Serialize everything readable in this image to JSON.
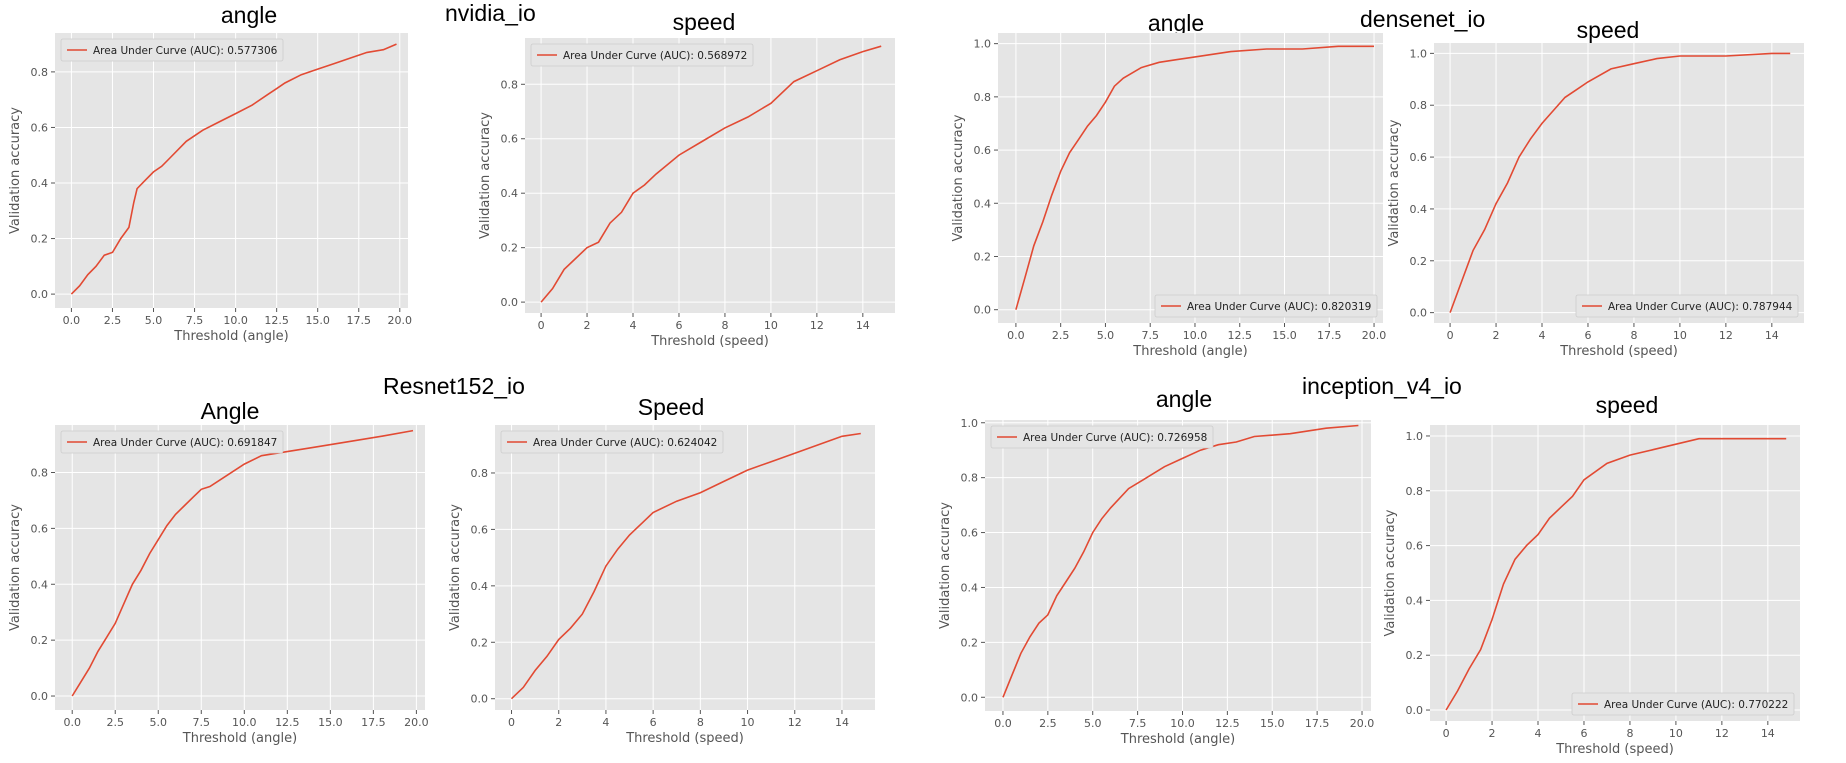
{
  "group_titles": [
    "nvidia_io",
    "densenet_io",
    "Resnet152_io",
    "inception_v4_io"
  ],
  "chart_titles": [
    "angle",
    "speed",
    "angle",
    "speed",
    "Angle",
    "Speed",
    "angle",
    "speed"
  ],
  "styles": {
    "plot_bg": "#e5e5e5",
    "grid": "#ffffff",
    "line": "#e24a33",
    "tick_text": "#555555",
    "label_text": "#555555"
  },
  "chart_data": [
    {
      "group": "nvidia_io",
      "title": "angle",
      "type": "line",
      "xlabel": "Threshold (angle)",
      "ylabel": "Validation accuracy",
      "xlim": [
        -1,
        20.5
      ],
      "ylim": [
        -0.05,
        0.94
      ],
      "xticks": [
        0.0,
        2.5,
        5.0,
        7.5,
        10.0,
        12.5,
        15.0,
        17.5,
        20.0
      ],
      "xtick_labels": [
        "0.0",
        "2.5",
        "5.0",
        "7.5",
        "10.0",
        "12.5",
        "15.0",
        "17.5",
        "20.0"
      ],
      "yticks": [
        0.0,
        0.2,
        0.4,
        0.6,
        0.8
      ],
      "ytick_labels": [
        "0.0",
        "0.2",
        "0.4",
        "0.6",
        "0.8"
      ],
      "legend": "top-left",
      "series": [
        {
          "name": "Area Under Curve (AUC): 0.577306",
          "x": [
            0,
            0.5,
            1,
            1.5,
            2,
            2.5,
            3,
            3.5,
            3.8,
            4,
            4.5,
            5,
            5.5,
            6,
            7,
            8,
            9,
            10,
            11,
            12,
            12.5,
            13,
            14,
            15,
            16,
            17,
            18,
            19,
            19.8
          ],
          "y": [
            0,
            0.03,
            0.07,
            0.1,
            0.14,
            0.15,
            0.2,
            0.24,
            0.33,
            0.38,
            0.41,
            0.44,
            0.46,
            0.49,
            0.55,
            0.59,
            0.62,
            0.65,
            0.68,
            0.72,
            0.74,
            0.76,
            0.79,
            0.81,
            0.83,
            0.85,
            0.87,
            0.88,
            0.9
          ]
        }
      ]
    },
    {
      "group": "nvidia_io",
      "title": "speed",
      "type": "line",
      "xlabel": "Threshold (speed)",
      "ylabel": "Validation accuracy",
      "xlim": [
        -0.7,
        15.4
      ],
      "ylim": [
        -0.04,
        0.97
      ],
      "xticks": [
        0,
        2,
        4,
        6,
        8,
        10,
        12,
        14
      ],
      "xtick_labels": [
        "0",
        "2",
        "4",
        "6",
        "8",
        "10",
        "12",
        "14"
      ],
      "yticks": [
        0.0,
        0.2,
        0.4,
        0.6,
        0.8
      ],
      "ytick_labels": [
        "0.0",
        "0.2",
        "0.4",
        "0.6",
        "0.8"
      ],
      "legend": "top-left",
      "series": [
        {
          "name": "Area Under Curve (AUC): 0.568972",
          "x": [
            0,
            0.5,
            1,
            1.5,
            2,
            2.5,
            3,
            3.5,
            4,
            4.5,
            5,
            6,
            7,
            8,
            9,
            10,
            11,
            12,
            13,
            14,
            14.8
          ],
          "y": [
            0,
            0.05,
            0.12,
            0.16,
            0.2,
            0.22,
            0.29,
            0.33,
            0.4,
            0.43,
            0.47,
            0.54,
            0.59,
            0.64,
            0.68,
            0.73,
            0.81,
            0.85,
            0.89,
            0.92,
            0.94
          ]
        }
      ]
    },
    {
      "group": "densenet_io",
      "title": "angle",
      "type": "line",
      "xlabel": "Threshold (angle)",
      "ylabel": "Validation accuracy",
      "xlim": [
        -1,
        20.5
      ],
      "ylim": [
        -0.05,
        1.04
      ],
      "xticks": [
        0.0,
        2.5,
        5.0,
        7.5,
        10.0,
        12.5,
        15.0,
        17.5,
        20.0
      ],
      "xtick_labels": [
        "0.0",
        "2.5",
        "5.0",
        "7.5",
        "10.0",
        "12.5",
        "15.0",
        "17.5",
        "20.0"
      ],
      "yticks": [
        0.0,
        0.2,
        0.4,
        0.6,
        0.8,
        1.0
      ],
      "ytick_labels": [
        "0.0",
        "0.2",
        "0.4",
        "0.6",
        "0.8",
        "1.0"
      ],
      "legend": "bottom-right",
      "series": [
        {
          "name": "Area Under Curve (AUC): 0.820319",
          "x": [
            0,
            0.5,
            1,
            1.5,
            2,
            2.5,
            3,
            3.5,
            4,
            4.5,
            5,
            5.5,
            6,
            7,
            8,
            9,
            10,
            12,
            14,
            16,
            18,
            20
          ],
          "y": [
            0,
            0.12,
            0.24,
            0.33,
            0.43,
            0.52,
            0.59,
            0.64,
            0.69,
            0.73,
            0.78,
            0.84,
            0.87,
            0.91,
            0.93,
            0.94,
            0.95,
            0.97,
            0.98,
            0.98,
            0.99,
            0.99
          ]
        }
      ]
    },
    {
      "group": "densenet_io",
      "title": "speed",
      "type": "line",
      "xlabel": "Threshold (speed)",
      "ylabel": "Validation accuracy",
      "xlim": [
        -0.7,
        15.4
      ],
      "ylim": [
        -0.04,
        1.04
      ],
      "xticks": [
        0,
        2,
        4,
        6,
        8,
        10,
        12,
        14
      ],
      "xtick_labels": [
        "0",
        "2",
        "4",
        "6",
        "8",
        "10",
        "12",
        "14"
      ],
      "yticks": [
        0.0,
        0.2,
        0.4,
        0.6,
        0.8,
        1.0
      ],
      "ytick_labels": [
        "0.0",
        "0.2",
        "0.4",
        "0.6",
        "0.8",
        "1.0"
      ],
      "legend": "bottom-right",
      "series": [
        {
          "name": "Area Under Curve (AUC): 0.787944",
          "x": [
            0,
            0.5,
            1,
            1.5,
            2,
            2.5,
            3,
            3.5,
            4,
            4.5,
            5,
            5.5,
            6,
            7,
            8,
            9,
            10,
            12,
            14,
            14.8
          ],
          "y": [
            0,
            0.12,
            0.24,
            0.32,
            0.42,
            0.5,
            0.6,
            0.67,
            0.73,
            0.78,
            0.83,
            0.86,
            0.89,
            0.94,
            0.96,
            0.98,
            0.99,
            0.99,
            1.0,
            1.0
          ]
        }
      ]
    },
    {
      "group": "Resnet152_io",
      "title": "Angle",
      "type": "line",
      "xlabel": "Threshold (angle)",
      "ylabel": "Validation accuracy",
      "xlim": [
        -1,
        20.5
      ],
      "ylim": [
        -0.05,
        0.97
      ],
      "xticks": [
        0.0,
        2.5,
        5.0,
        7.5,
        10.0,
        12.5,
        15.0,
        17.5,
        20.0
      ],
      "xtick_labels": [
        "0.0",
        "2.5",
        "5.0",
        "7.5",
        "10.0",
        "12.5",
        "15.0",
        "17.5",
        "20.0"
      ],
      "yticks": [
        0.0,
        0.2,
        0.4,
        0.6,
        0.8
      ],
      "ytick_labels": [
        "0.0",
        "0.2",
        "0.4",
        "0.6",
        "0.8"
      ],
      "legend": "top-left",
      "series": [
        {
          "name": "Area Under Curve (AUC): 0.691847",
          "x": [
            0,
            0.5,
            1,
            1.5,
            2,
            2.5,
            3,
            3.5,
            4,
            4.5,
            5,
            5.5,
            6,
            6.5,
            7,
            7.5,
            8,
            9,
            10,
            11,
            12,
            14,
            16,
            18,
            19.8
          ],
          "y": [
            0,
            0.05,
            0.1,
            0.16,
            0.21,
            0.26,
            0.33,
            0.4,
            0.45,
            0.51,
            0.56,
            0.61,
            0.65,
            0.68,
            0.71,
            0.74,
            0.75,
            0.79,
            0.83,
            0.86,
            0.87,
            0.89,
            0.91,
            0.93,
            0.95
          ]
        }
      ]
    },
    {
      "group": "Resnet152_io",
      "title": "Speed",
      "type": "line",
      "xlabel": "Threshold (speed)",
      "ylabel": "Validation accuracy",
      "xlim": [
        -0.7,
        15.4
      ],
      "ylim": [
        -0.04,
        0.97
      ],
      "xticks": [
        0,
        2,
        4,
        6,
        8,
        10,
        12,
        14
      ],
      "xtick_labels": [
        "0",
        "2",
        "4",
        "6",
        "8",
        "10",
        "12",
        "14"
      ],
      "yticks": [
        0.0,
        0.2,
        0.4,
        0.6,
        0.8
      ],
      "ytick_labels": [
        "0.0",
        "0.2",
        "0.4",
        "0.6",
        "0.8"
      ],
      "legend": "top-left",
      "series": [
        {
          "name": "Area Under Curve (AUC): 0.624042",
          "x": [
            0,
            0.5,
            1,
            1.5,
            2,
            2.5,
            3,
            3.5,
            4,
            4.5,
            5,
            5.5,
            6,
            7,
            8,
            9,
            10,
            11,
            12,
            13,
            14,
            14.8
          ],
          "y": [
            0,
            0.04,
            0.1,
            0.15,
            0.21,
            0.25,
            0.3,
            0.38,
            0.47,
            0.53,
            0.58,
            0.62,
            0.66,
            0.7,
            0.73,
            0.77,
            0.81,
            0.84,
            0.87,
            0.9,
            0.93,
            0.94
          ]
        }
      ]
    },
    {
      "group": "inception_v4_io",
      "title": "angle",
      "type": "line",
      "xlabel": "Threshold (angle)",
      "ylabel": "Validation accuracy",
      "xlim": [
        -1,
        20.5
      ],
      "ylim": [
        -0.05,
        1.01
      ],
      "xticks": [
        0.0,
        2.5,
        5.0,
        7.5,
        10.0,
        12.5,
        15.0,
        17.5,
        20.0
      ],
      "xtick_labels": [
        "0.0",
        "2.5",
        "5.0",
        "7.5",
        "10.0",
        "12.5",
        "15.0",
        "17.5",
        "20.0"
      ],
      "yticks": [
        0.0,
        0.2,
        0.4,
        0.6,
        0.8,
        1.0
      ],
      "ytick_labels": [
        "0.0",
        "0.2",
        "0.4",
        "0.6",
        "0.8",
        "1.0"
      ],
      "legend": "top-left",
      "series": [
        {
          "name": "Area Under Curve (AUC): 0.726958",
          "x": [
            0,
            0.5,
            1,
            1.5,
            2,
            2.5,
            3,
            3.5,
            4,
            4.5,
            5,
            5.5,
            6,
            7,
            8,
            9,
            10,
            11,
            12,
            13,
            14,
            16,
            18,
            19.8
          ],
          "y": [
            0,
            0.08,
            0.16,
            0.22,
            0.27,
            0.3,
            0.37,
            0.42,
            0.47,
            0.53,
            0.6,
            0.65,
            0.69,
            0.76,
            0.8,
            0.84,
            0.87,
            0.9,
            0.92,
            0.93,
            0.95,
            0.96,
            0.98,
            0.99
          ]
        }
      ]
    },
    {
      "group": "inception_v4_io",
      "title": "speed",
      "type": "line",
      "xlabel": "Threshold (speed)",
      "ylabel": "Validation accuracy",
      "xlim": [
        -0.7,
        15.4
      ],
      "ylim": [
        -0.04,
        1.04
      ],
      "xticks": [
        0,
        2,
        4,
        6,
        8,
        10,
        12,
        14
      ],
      "xtick_labels": [
        "0",
        "2",
        "4",
        "6",
        "8",
        "10",
        "12",
        "14"
      ],
      "yticks": [
        0.0,
        0.2,
        0.4,
        0.6,
        0.8,
        1.0
      ],
      "ytick_labels": [
        "0.0",
        "0.2",
        "0.4",
        "0.6",
        "0.8",
        "1.0"
      ],
      "legend": "bottom-right",
      "series": [
        {
          "name": "Area Under Curve (AUC): 0.770222",
          "x": [
            0,
            0.5,
            1,
            1.5,
            2,
            2.5,
            3,
            3.5,
            4,
            4.5,
            5,
            5.5,
            6,
            7,
            8,
            9,
            10,
            11,
            12,
            13,
            14,
            14.8
          ],
          "y": [
            0,
            0.07,
            0.15,
            0.22,
            0.33,
            0.46,
            0.55,
            0.6,
            0.64,
            0.7,
            0.74,
            0.78,
            0.84,
            0.9,
            0.93,
            0.95,
            0.97,
            0.99,
            0.99,
            0.99,
            0.99,
            0.99
          ]
        }
      ]
    }
  ]
}
